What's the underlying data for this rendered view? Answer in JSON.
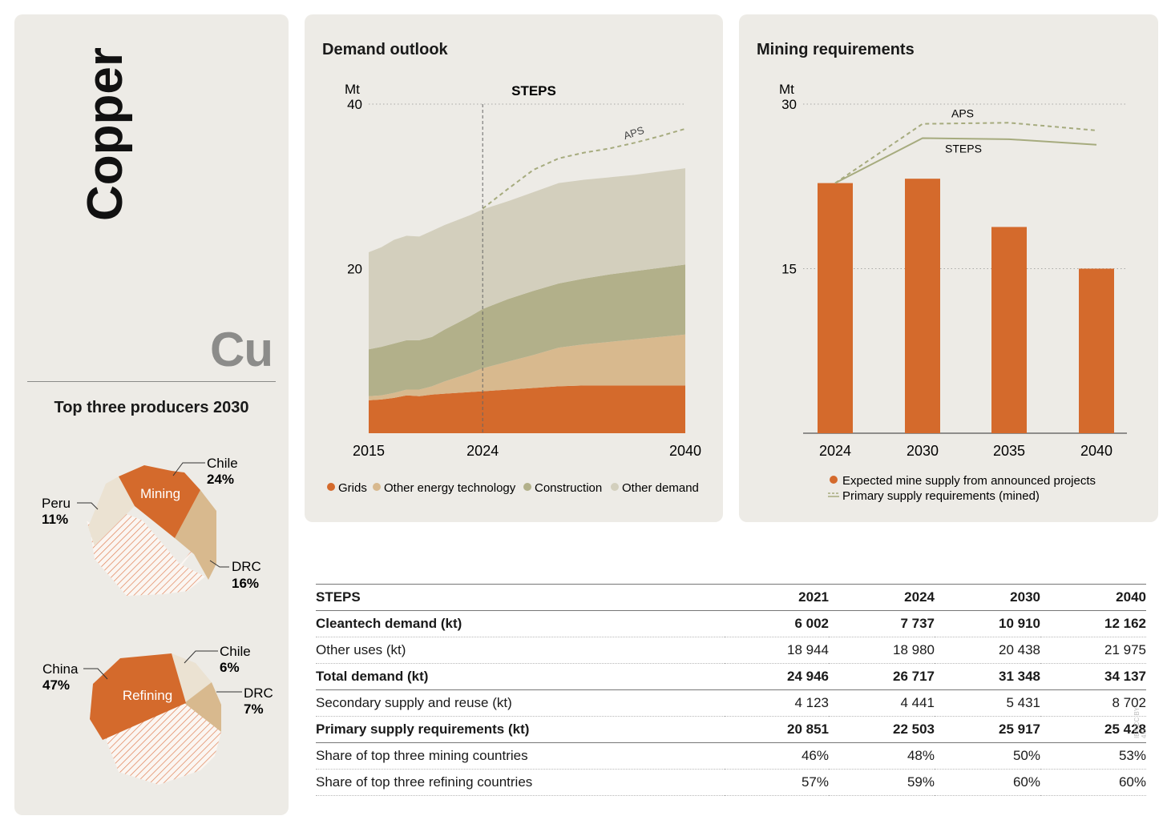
{
  "element": {
    "name": "Copper",
    "symbol": "Cu"
  },
  "producers": {
    "title": "Top three producers 2030",
    "mining": {
      "label": "Mining",
      "slices": [
        {
          "country": "Chile",
          "share": "24%",
          "color": "#d46a2c"
        },
        {
          "country": "DRC",
          "share": "16%",
          "color": "#d8b98e"
        },
        {
          "country": "Peru",
          "share": "11%",
          "color": "#ebe2d2"
        }
      ]
    },
    "refining": {
      "label": "Refining",
      "slices": [
        {
          "country": "China",
          "share": "47%",
          "color": "#d46a2c"
        },
        {
          "country": "Chile",
          "share": "6%",
          "color": "#ebe2d2"
        },
        {
          "country": "DRC",
          "share": "7%",
          "color": "#d8b98e"
        }
      ]
    }
  },
  "chart_data": [
    {
      "type": "area",
      "title": "Demand outlook",
      "unit": "Mt",
      "scenario_label": "STEPS",
      "projection_start": 2024,
      "x": [
        2015,
        2016,
        2017,
        2018,
        2019,
        2020,
        2021,
        2022,
        2023,
        2024,
        2026,
        2028,
        2030,
        2032,
        2034,
        2036,
        2038,
        2040
      ],
      "series": [
        {
          "name": "Grids",
          "color": "#d46a2c",
          "values": [
            4.0,
            4.1,
            4.3,
            4.6,
            4.5,
            4.7,
            4.8,
            4.9,
            5.0,
            5.1,
            5.3,
            5.5,
            5.7,
            5.8,
            5.8,
            5.8,
            5.8,
            5.8
          ]
        },
        {
          "name": "Other energy technology",
          "color": "#d8b98e",
          "values": [
            0.5,
            0.5,
            0.6,
            0.7,
            0.8,
            1.0,
            1.5,
            1.9,
            2.3,
            2.8,
            3.4,
            4.0,
            4.7,
            5.0,
            5.3,
            5.6,
            5.9,
            6.2
          ]
        },
        {
          "name": "Construction",
          "color": "#b2b08a",
          "values": [
            5.7,
            5.9,
            6.0,
            6.0,
            6.0,
            6.0,
            6.3,
            6.6,
            6.9,
            7.2,
            7.6,
            7.8,
            7.8,
            8.0,
            8.2,
            8.3,
            8.4,
            8.5
          ]
        },
        {
          "name": "Other demand",
          "color": "#d3cfbd",
          "values": [
            11.8,
            12.1,
            12.6,
            12.7,
            12.6,
            12.9,
            12.7,
            12.5,
            12.3,
            12.1,
            11.9,
            12.0,
            12.2,
            12.0,
            11.8,
            11.7,
            11.7,
            11.7
          ]
        }
      ],
      "aps": {
        "name": "APS",
        "x": [
          2024,
          2026,
          2028,
          2030,
          2032,
          2034,
          2036,
          2038,
          2040
        ],
        "values": [
          27.3,
          29.7,
          32.0,
          33.4,
          34.1,
          34.6,
          35.3,
          36.1,
          37.0
        ]
      },
      "ylim": [
        0,
        40
      ],
      "yticks": [
        20,
        40
      ],
      "xticks": [
        2015,
        2024,
        2040
      ]
    },
    {
      "type": "bar",
      "title": "Mining requirements",
      "unit": "Mt",
      "categories": [
        "2024",
        "2030",
        "2035",
        "2040"
      ],
      "series": [
        {
          "name": "Expected mine supply from announced projects",
          "color": "#d46a2c",
          "values": [
            22.8,
            23.2,
            18.8,
            15.0
          ]
        }
      ],
      "lines": [
        {
          "name": "APS",
          "values": [
            22.8,
            28.2,
            28.3,
            27.6
          ]
        },
        {
          "name": "STEPS",
          "values": [
            22.8,
            26.9,
            26.8,
            26.3
          ]
        }
      ],
      "legend_line_label": "Primary supply requirements (mined)",
      "ylim": [
        0,
        30
      ],
      "yticks": [
        15,
        30
      ]
    }
  ],
  "table": {
    "headers": [
      "STEPS",
      "2021",
      "2024",
      "2030",
      "2040"
    ],
    "rows": [
      {
        "label": "Cleantech demand (kt)",
        "values": [
          "6 002",
          "7 737",
          "10 910",
          "12 162"
        ],
        "bold": true,
        "solid": false
      },
      {
        "label": "Other uses (kt)",
        "values": [
          "18 944",
          "18 980",
          "20 438",
          "21 975"
        ],
        "bold": false,
        "solid": false
      },
      {
        "label": "Total demand (kt)",
        "values": [
          "24 946",
          "26 717",
          "31 348",
          "34 137"
        ],
        "bold": true,
        "solid": true
      },
      {
        "label": "Secondary supply and reuse (kt)",
        "values": [
          "4 123",
          "4 441",
          "5 431",
          "8 702"
        ],
        "bold": false,
        "solid": false
      },
      {
        "label": "Primary supply requirements (kt)",
        "values": [
          "20 851",
          "22 503",
          "25 917",
          "25 428"
        ],
        "bold": true,
        "solid": true
      },
      {
        "label": "Share of top three mining countries",
        "values": [
          "46%",
          "48%",
          "50%",
          "53%"
        ],
        "bold": false,
        "solid": false
      },
      {
        "label": "Share of top three refining countries",
        "values": [
          "57%",
          "59%",
          "60%",
          "60%"
        ],
        "bold": false,
        "solid": false
      }
    ]
  },
  "watermark": "IEA CC BY 4.0"
}
